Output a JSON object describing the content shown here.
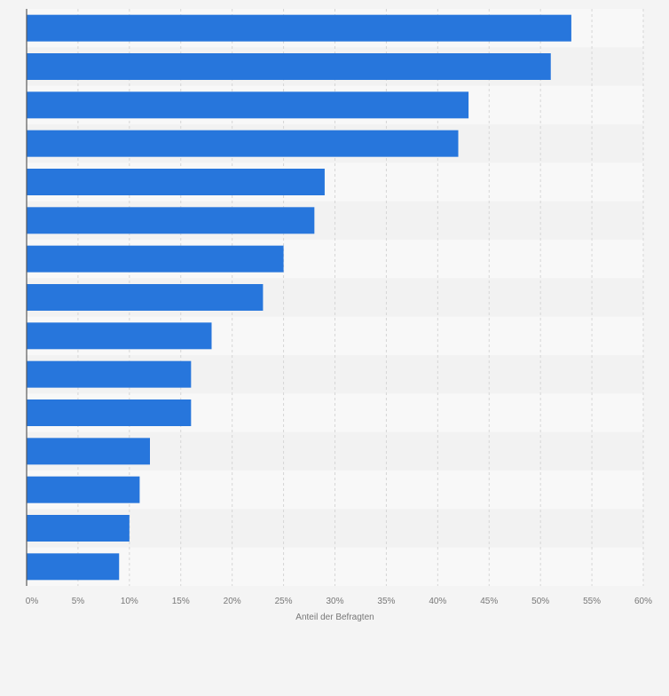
{
  "chart_data": {
    "type": "bar",
    "orientation": "horizontal",
    "categories": [
      "",
      "",
      "",
      "",
      "",
      "",
      "",
      "",
      "",
      "",
      "",
      "",
      "",
      "",
      ""
    ],
    "values": [
      53,
      51,
      43,
      42,
      29,
      28,
      25,
      23,
      18,
      16,
      16,
      12,
      11,
      10,
      9
    ],
    "title": "",
    "xlabel": "Anteil der Befragten",
    "ylabel": "",
    "xlim": [
      0,
      60
    ],
    "x_ticks": [
      "0%",
      "5%",
      "10%",
      "15%",
      "20%",
      "25%",
      "30%",
      "35%",
      "40%",
      "45%",
      "50%",
      "55%",
      "60%"
    ],
    "grid": true,
    "legend": "none",
    "colors": {
      "bar": "#2776dc",
      "band_light": "#f8f8f8",
      "band_dark": "#f2f2f2",
      "grid": "#d6d6d6",
      "axis": "#5a5a5a",
      "tick_text": "#777777",
      "page_bg": "#f4f4f4"
    }
  }
}
